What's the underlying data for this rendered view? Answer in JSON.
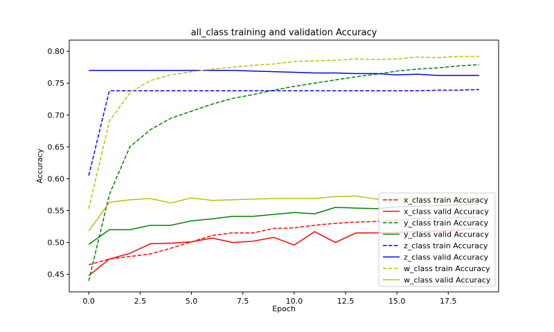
{
  "chart_data": {
    "type": "line",
    "title": "all_class training and validation Accuracy",
    "xlabel": "Epoch",
    "ylabel": "Accuracy",
    "xlim": [
      -0.95,
      19.95
    ],
    "ylim": [
      0.4225,
      0.8175
    ],
    "xticks": [
      0,
      2.5,
      5,
      7.5,
      10,
      12.5,
      15,
      17.5
    ],
    "xtick_labels": [
      "0.0",
      "2.5",
      "5.0",
      "7.5",
      "10.0",
      "12.5",
      "15.0",
      "17.5"
    ],
    "yticks": [
      0.45,
      0.5,
      0.55,
      0.6,
      0.65,
      0.7,
      0.75,
      0.8
    ],
    "ytick_labels": [
      "0.45",
      "0.50",
      "0.55",
      "0.60",
      "0.65",
      "0.70",
      "0.75",
      "0.80"
    ],
    "grid": false,
    "legend_position": "lower-right",
    "x": [
      0,
      1,
      2,
      3,
      4,
      5,
      6,
      7,
      8,
      9,
      10,
      11,
      12,
      13,
      14,
      15,
      16,
      17,
      18,
      19
    ],
    "series": [
      {
        "name": "x_class train Accuracy",
        "color": "#ff0000",
        "style": "dashed",
        "values": [
          0.465,
          0.474,
          0.478,
          0.482,
          0.491,
          0.501,
          0.511,
          0.515,
          0.515,
          0.522,
          0.523,
          0.527,
          0.53,
          0.532,
          0.533,
          0.535,
          0.537,
          0.538,
          0.539,
          0.54
        ]
      },
      {
        "name": "x_class valid Accuracy",
        "color": "#ff0000",
        "style": "solid",
        "values": [
          0.448,
          0.474,
          0.483,
          0.498,
          0.499,
          0.501,
          0.507,
          0.5,
          0.502,
          0.508,
          0.496,
          0.517,
          0.5,
          0.515,
          0.515,
          0.516,
          0.517,
          0.518,
          0.52,
          0.522
        ]
      },
      {
        "name": "y_class train Accuracy",
        "color": "#008000",
        "style": "dashed",
        "values": [
          0.44,
          0.575,
          0.65,
          0.677,
          0.695,
          0.706,
          0.717,
          0.726,
          0.732,
          0.739,
          0.745,
          0.75,
          0.755,
          0.76,
          0.764,
          0.769,
          0.772,
          0.774,
          0.777,
          0.779
        ]
      },
      {
        "name": "y_class valid Accuracy",
        "color": "#008000",
        "style": "solid",
        "values": [
          0.497,
          0.52,
          0.52,
          0.527,
          0.527,
          0.534,
          0.537,
          0.541,
          0.541,
          0.544,
          0.547,
          0.545,
          0.555,
          0.554,
          0.553,
          0.556,
          0.557,
          0.558,
          0.559,
          0.56
        ]
      },
      {
        "name": "z_class train Accuracy",
        "color": "#0000ff",
        "style": "dashed",
        "values": [
          0.605,
          0.738,
          0.738,
          0.738,
          0.738,
          0.738,
          0.738,
          0.738,
          0.738,
          0.738,
          0.738,
          0.738,
          0.738,
          0.738,
          0.738,
          0.738,
          0.738,
          0.739,
          0.739,
          0.74
        ]
      },
      {
        "name": "z_class valid Accuracy",
        "color": "#0000ff",
        "style": "solid",
        "values": [
          0.77,
          0.77,
          0.77,
          0.77,
          0.77,
          0.77,
          0.77,
          0.77,
          0.769,
          0.768,
          0.767,
          0.766,
          0.766,
          0.765,
          0.765,
          0.763,
          0.764,
          0.762,
          0.762,
          0.762
        ]
      },
      {
        "name": "w_class train Accuracy",
        "color": "#bfbf00",
        "style": "dashed",
        "values": [
          0.553,
          0.69,
          0.735,
          0.754,
          0.763,
          0.768,
          0.772,
          0.775,
          0.778,
          0.78,
          0.784,
          0.785,
          0.786,
          0.788,
          0.787,
          0.788,
          0.791,
          0.79,
          0.792,
          0.792
        ]
      },
      {
        "name": "w_class valid Accuracy",
        "color": "#bfbf00",
        "style": "solid",
        "values": [
          0.518,
          0.563,
          0.567,
          0.569,
          0.562,
          0.57,
          0.566,
          0.567,
          0.568,
          0.569,
          0.569,
          0.569,
          0.572,
          0.573,
          0.568,
          0.569,
          0.57,
          0.57,
          0.571,
          0.571
        ]
      }
    ]
  }
}
